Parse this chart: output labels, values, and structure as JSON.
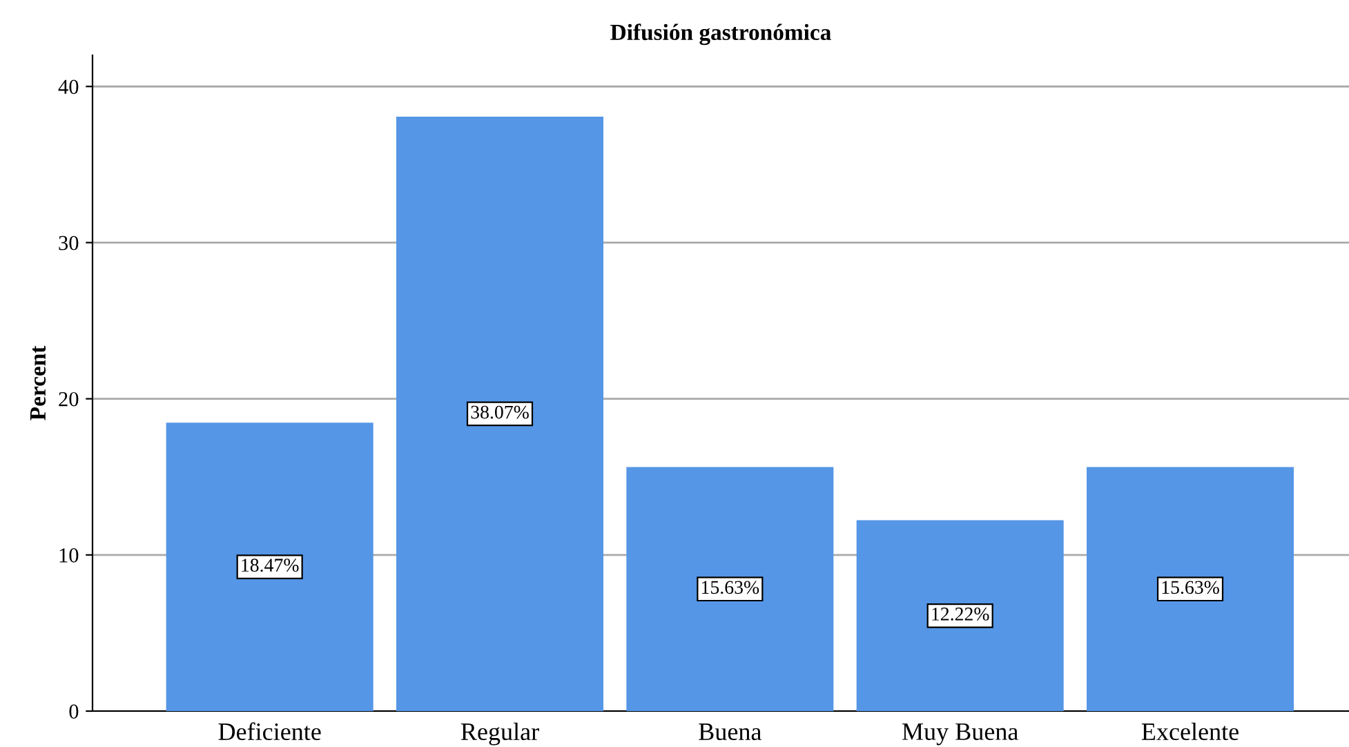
{
  "chart_data": {
    "type": "bar",
    "title": "Difusión gastronómica",
    "ylabel": "Percent",
    "categories": [
      "Deficiente",
      "Regular",
      "Buena",
      "Muy Buena",
      "Excelente"
    ],
    "values": [
      18.47,
      38.07,
      15.63,
      12.22,
      15.63
    ],
    "value_labels": [
      "18.47%",
      "38.07%",
      "15.63%",
      "12.22%",
      "15.63%"
    ],
    "color": "#5596e6",
    "ylim": [
      0,
      42
    ],
    "yticks": [
      0,
      10,
      20,
      30,
      40
    ],
    "grid": "y"
  }
}
